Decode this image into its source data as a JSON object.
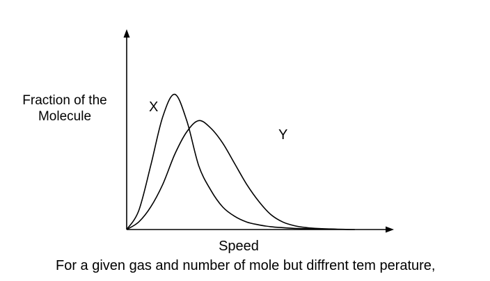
{
  "chart_data": {
    "type": "line",
    "ylabel": "Fraction of the Molecule",
    "ylabel_lines": [
      "Fraction of the",
      "Molecule"
    ],
    "xlabel": "Speed",
    "caption": "For a given gas and number of mole but diffrent tem perature,",
    "grid": false,
    "series": [
      {
        "name": "X",
        "x": [
          0,
          5,
          10,
          15,
          20,
          25,
          30,
          35,
          40,
          45,
          50,
          55,
          60,
          65,
          70,
          75,
          80,
          85,
          90,
          95,
          100
        ],
        "y": [
          0,
          10,
          34,
          60,
          72,
          58,
          34,
          21,
          12,
          7,
          4,
          2.5,
          1.5,
          1,
          0.6,
          0.4,
          0.3,
          0.2,
          0.1,
          0.1,
          0.1
        ]
      },
      {
        "name": "Y",
        "x": [
          0,
          5,
          10,
          15,
          20,
          25,
          30,
          35,
          40,
          45,
          50,
          55,
          60,
          65,
          70,
          75,
          80,
          85,
          90,
          95,
          100
        ],
        "y": [
          0,
          4,
          12,
          24,
          40,
          52,
          58,
          54,
          46,
          35,
          24,
          15,
          8,
          4,
          2,
          1,
          0.5,
          0.3,
          0.1,
          0,
          0
        ]
      }
    ]
  }
}
